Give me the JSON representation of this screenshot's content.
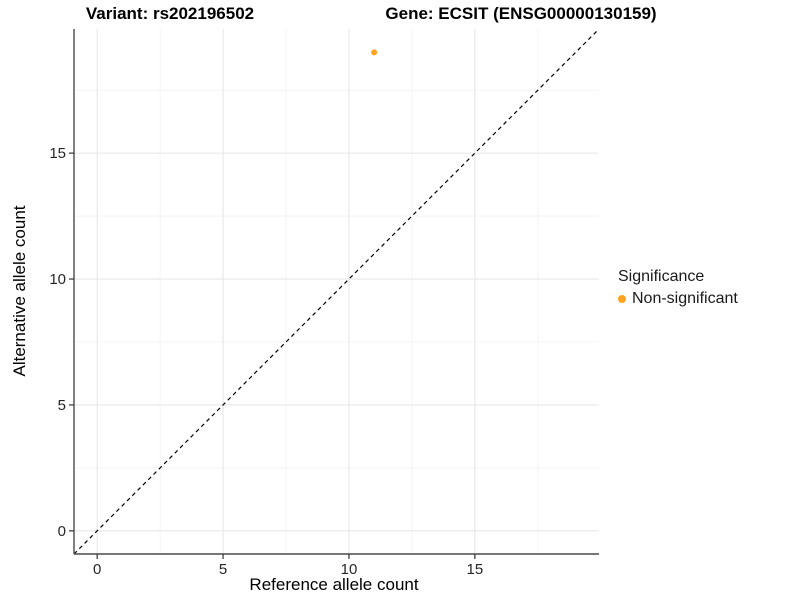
{
  "titles": {
    "variant": "Variant: rs202196502",
    "gene": "Gene: ECSIT (ENSG00000130159)"
  },
  "axes": {
    "x_label": "Reference allele count",
    "y_label": "Alternative allele count"
  },
  "legend": {
    "title": "Significance",
    "items": [
      {
        "label": "Non-significant",
        "color": "#FFA220"
      }
    ]
  },
  "chart_data": {
    "type": "scatter",
    "title_left": "Variant: rs202196502",
    "title_right": "Gene: ECSIT (ENSG00000130159)",
    "xlabel": "Reference allele count",
    "ylabel": "Alternative allele count",
    "xlim": [
      -0.92,
      19.93
    ],
    "ylim": [
      -0.92,
      19.93
    ],
    "x_ticks": [
      0,
      5,
      10,
      15
    ],
    "y_ticks": [
      0,
      5,
      10,
      15
    ],
    "x_minor_ticks": [
      2.5,
      7.5,
      12.5,
      17.5
    ],
    "y_minor_ticks": [
      2.5,
      7.5,
      12.5,
      17.5
    ],
    "grid": true,
    "legend_position": "right",
    "series": [
      {
        "name": "Non-significant",
        "color": "#FFA220",
        "points": [
          {
            "x": 11,
            "y": 19
          }
        ]
      }
    ],
    "reference_line": {
      "kind": "identity",
      "equation": "y = x",
      "style": "dashed",
      "color": "#000000"
    }
  }
}
